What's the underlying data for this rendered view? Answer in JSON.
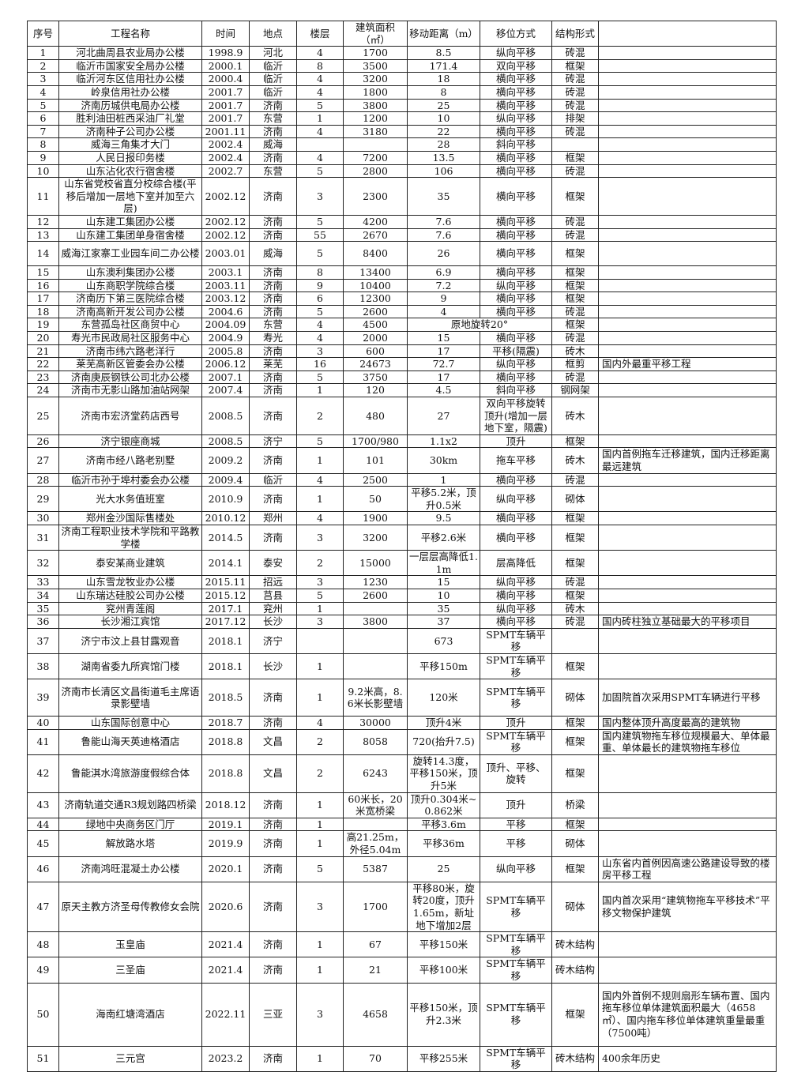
{
  "headers": [
    "序号",
    "工程名称",
    "时间",
    "地点",
    "楼层",
    "建筑面积（㎡）",
    "移动距离（m）",
    "移位方式",
    "结构形式",
    ""
  ],
  "rows": [
    [
      "1",
      "河北曲周县农业局办公楼",
      "1998.9",
      "河北",
      "4",
      "1700",
      "8.5",
      "纵向平移",
      "砖混",
      ""
    ],
    [
      "2",
      "临沂市国家安全局办公楼",
      "2000.1",
      "临沂",
      "8",
      "3500",
      "171.4",
      "双向平移",
      "框架",
      ""
    ],
    [
      "3",
      "临沂河东区信用社办公楼",
      "2000.4",
      "临沂",
      "4",
      "3200",
      "18",
      "横向平移",
      "砖混",
      ""
    ],
    [
      "4",
      "岭泉信用社办公楼",
      "2001.7",
      "临沂",
      "4",
      "1800",
      "8",
      "横向平移",
      "砖混",
      ""
    ],
    [
      "5",
      "济南历城供电局办公楼",
      "2001.7",
      "济南",
      "5",
      "3800",
      "25",
      "横向平移",
      "砖混",
      ""
    ],
    [
      "6",
      "胜利油田桩西采油厂礼堂",
      "2001.7",
      "东营",
      "1",
      "1200",
      "10",
      "纵向平移",
      "排架",
      ""
    ],
    [
      "7",
      "济南种子公司办公楼",
      "2001.11",
      "济南",
      "4",
      "3180",
      "22",
      "横向平移",
      "砖混",
      ""
    ],
    [
      "8",
      "威海三角集才大门",
      "2002.4",
      "威海",
      "",
      "",
      "28",
      "斜向平移",
      "",
      ""
    ],
    [
      "9",
      "人民日报印务楼",
      "2002.4",
      "济南",
      "4",
      "7200",
      "13.5",
      "横向平移",
      "框架",
      ""
    ],
    [
      "10",
      "山东沾化农行宿舍楼",
      "2002.7",
      "东营",
      "5",
      "2800",
      "106",
      "横向平移",
      "砖混",
      ""
    ],
    [
      "11",
      "山东省党校省直分校综合楼(平移后增加一层地下室并加至六层)",
      "2002.12",
      "济南",
      "3",
      "2300",
      "35",
      "横向平移",
      "框架",
      ""
    ],
    [
      "12",
      "山东建工集团办公楼",
      "2002.12",
      "济南",
      "5",
      "4200",
      "7.6",
      "横向平移",
      "砖混",
      ""
    ],
    [
      "13",
      "山东建工集团单身宿舍楼",
      "2002.12",
      "济南",
      "55",
      "2670",
      "7.6",
      "横向平移",
      "砖混",
      ""
    ],
    [
      "14",
      "威海江家寨工业园车间二办公楼",
      "2003.01",
      "威海",
      "5",
      "8400",
      "26",
      "横向平移",
      "框架",
      ""
    ],
    [
      "15",
      "山东澳利集团办公楼",
      "2003.1",
      "济南",
      "8",
      "13400",
      "6.9",
      "横向平移",
      "框架",
      ""
    ],
    [
      "16",
      "山东商职学院综合楼",
      "2003.11",
      "济南",
      "9",
      "10400",
      "7.2",
      "纵向平移",
      "框架",
      ""
    ],
    [
      "17",
      "济南历下第三医院综合楼",
      "2003.12",
      "济南",
      "6",
      "12300",
      "9",
      "横向平移",
      "框架",
      ""
    ],
    [
      "18",
      "济南高新开发公司办公楼",
      "2004.6",
      "济南",
      "5",
      "2600",
      "4",
      "横向平移",
      "砖混",
      ""
    ],
    [
      "19",
      "东营孤岛社区商贸中心",
      "2004.09",
      "东营",
      "4",
      "4500",
      "原地旋转20°",
      null,
      "框架",
      ""
    ],
    [
      "20",
      "寿光市民政局社区服务中心",
      "2004.9",
      "寿光",
      "4",
      "2000",
      "15",
      "横向平移",
      "砖混",
      ""
    ],
    [
      "21",
      "济南市纬六路老洋行",
      "2005.8",
      "济南",
      "3",
      "600",
      "17",
      "平移(隔震)",
      "砖木",
      ""
    ],
    [
      "22",
      "莱芜高新区管委会办公楼",
      "2006.12",
      "莱芜",
      "16",
      "24673",
      "72.7",
      "纵向平移",
      "框剪",
      "国内外最重平移工程"
    ],
    [
      "23",
      "济南庚辰钢铁公司北办公楼",
      "2007.1",
      "济南",
      "5",
      "3750",
      "17",
      "横向平移",
      "砖混",
      ""
    ],
    [
      "24",
      "济南市无影山路加油站网架",
      "2007.4",
      "济南",
      "1",
      "120",
      "4.5",
      "斜向平移",
      "钢网架",
      ""
    ],
    [
      "25",
      "济南市宏济堂药店西号",
      "2008.5",
      "济南",
      "2",
      "480",
      "27",
      "双向平移旋转顶升(增加一层地下室，隔震)",
      "砖木",
      ""
    ],
    [
      "26",
      "济宁银座商城",
      "2008.5",
      "济宁",
      "5",
      "1700/980",
      "1.1x2",
      "顶升",
      "框架",
      ""
    ],
    [
      "27",
      "济南市经八路老别墅",
      "2009.2",
      "济南",
      "1",
      "101",
      "30km",
      "拖车平移",
      "砖木",
      "国内首例拖车迁移建筑，国内迁移距离最远建筑"
    ],
    [
      "28",
      "临沂市孙于埠村委会办公楼",
      "2009.4",
      "临沂",
      "4",
      "2500",
      "1",
      "横向平移",
      "砖混",
      ""
    ],
    [
      "29",
      "光大水务值班室",
      "2010.9",
      "济南",
      "1",
      "50",
      "平移5.2米，顶升0.5米",
      "纵向平移",
      "砌体",
      ""
    ],
    [
      "30",
      "郑州金沙国际售楼处",
      "2010.12",
      "郑州",
      "4",
      "1900",
      "9.5",
      "横向平移",
      "框架",
      ""
    ],
    [
      "31",
      "济南工程职业技术学院和平路教学楼",
      "2014.5",
      "济南",
      "3",
      "3200",
      "平移2.6米",
      "横向平移",
      "框架",
      ""
    ],
    [
      "32",
      "泰安某商业建筑",
      "2014.1",
      "泰安",
      "2",
      "15000",
      "一层层高降低1.1m",
      "层高降低",
      "框架",
      ""
    ],
    [
      "33",
      "山东雪龙牧业办公楼",
      "2015.11",
      "招远",
      "3",
      "1230",
      "15",
      "纵向平移",
      "砖混",
      ""
    ],
    [
      "34",
      "山东瑞达硅胶公司办公楼",
      "2015.12",
      "莒县",
      "5",
      "2600",
      "10",
      "横向平移",
      "框架",
      ""
    ],
    [
      "35",
      "兖州青莲阁",
      "2017.1",
      "兖州",
      "1",
      "",
      "35",
      "纵向平移",
      "砖木",
      ""
    ],
    [
      "36",
      "长沙湘江宾馆",
      "2017.12",
      "长沙",
      "3",
      "3800",
      "37",
      "横向平移",
      "砖混",
      "国内砖柱独立基础最大的平移项目"
    ],
    [
      "37",
      "济宁市汶上县甘露观音",
      "2018.1",
      "济宁",
      "",
      "",
      "673",
      "SPMT车辆平移",
      "",
      ""
    ],
    [
      "38",
      "湖南省委九所宾馆门楼",
      "2018.1",
      "长沙",
      "1",
      "",
      "平移150m",
      "SPMT车辆平移",
      "框架",
      ""
    ],
    [
      "39",
      "济南市长清区文昌街道毛主席语录影壁墙",
      "2018.5",
      "济南",
      "1",
      "9.2米高，8.6米长影壁墙",
      "120米",
      "SPMT车辆平移",
      "砌体",
      "加固院首次采用SPMT车辆进行平移"
    ],
    [
      "40",
      "山东国际创意中心",
      "2018.7",
      "济南",
      "4",
      "30000",
      "顶升4米",
      "顶升",
      "框架",
      "国内整体顶升高度最高的建筑物"
    ],
    [
      "41",
      "鲁能山海天英迪格酒店",
      "2018.8",
      "文昌",
      "2",
      "8058",
      "720(抬升7.5)",
      "SPMT车辆平移",
      "框架",
      "国内建筑物拖车移位规模最大、单体最重、单体最长的建筑物拖车移位"
    ],
    [
      "42",
      "鲁能淇水湾旅游度假综合体",
      "2018.8",
      "文昌",
      "2",
      "6243",
      "旋转14.3度，平移150米，顶升5米",
      "顶升、平移、旋转",
      "框架",
      ""
    ],
    [
      "43",
      "济南轨道交通R3规划路四桥梁",
      "2018.12",
      "济南",
      "1",
      "60米长，20米宽桥梁",
      "顶升0.304米~0.862米",
      "顶升",
      "桥梁",
      ""
    ],
    [
      "44",
      "绿地中央商务区门厅",
      "2019.1",
      "济南",
      "1",
      "",
      "平移3.6m",
      "平移",
      "框架",
      ""
    ],
    [
      "45",
      "解放路水塔",
      "2019.9",
      "济南",
      "1",
      "高21.25m，外径5.04m",
      "平移36m",
      "平移",
      "砌体",
      ""
    ],
    [
      "46",
      "济南鸿旺混凝土办公楼",
      "2020.1",
      "济南",
      "5",
      "5387",
      "25",
      "纵向平移",
      "框架",
      "山东省内首例因高速公路建设导致的楼房平移工程"
    ],
    [
      "47",
      "原天主教方济圣母传教修女会院",
      "2020.6",
      "济南",
      "3",
      "1700",
      "平移80米，旋转20度，顶升1.65m，新址地下增加2层",
      "SPMT车辆平移",
      "砌体",
      "国内首次采用“建筑物拖车平移技术”平移文物保护建筑"
    ],
    [
      "48",
      "玉皇庙",
      "2021.4",
      "济南",
      "1",
      "67",
      "平移150米",
      "SPMT车辆平移",
      "砖木结构",
      ""
    ],
    [
      "49",
      "三圣庙",
      "2021.4",
      "济南",
      "1",
      "21",
      "平移100米",
      "SPMT车辆平移",
      "砖木结构",
      ""
    ],
    [
      "50",
      "海南红塘湾酒店",
      "2022.11",
      "三亚",
      "3",
      "4658",
      "平移150米，顶升2.3米",
      "SPMT车辆平移",
      "框架",
      "国内外首例不规则扇形车辆布置、国内拖车移位单体建筑面积最大（4658㎡）、国内拖车移位单体建筑重量最重（7500吨）"
    ],
    [
      "51",
      "三元宫",
      "2023.2",
      "济南",
      "1",
      "70",
      "平移255米",
      "SPMT车辆平移",
      "砖木结构",
      " 400余年历史"
    ]
  ]
}
